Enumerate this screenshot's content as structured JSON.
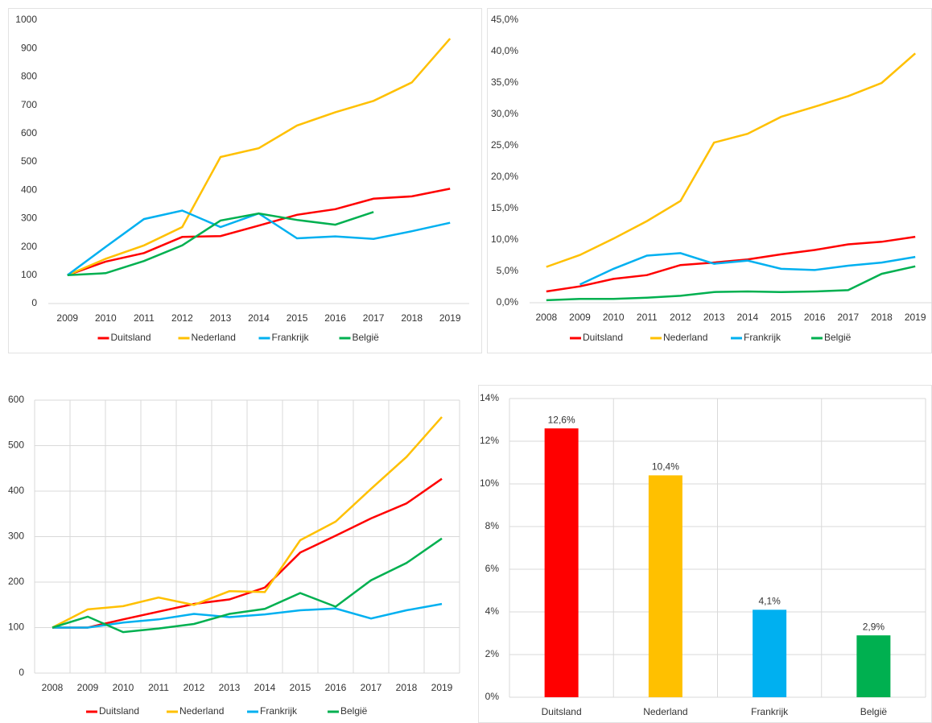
{
  "chart_data": [
    {
      "type": "line",
      "categories": [
        "2009",
        "2010",
        "2011",
        "2012",
        "2013",
        "2014",
        "2015",
        "2016",
        "2017",
        "2018",
        "2019"
      ],
      "ylim": [
        0,
        1000
      ],
      "yticks": [
        0,
        100,
        200,
        300,
        400,
        500,
        600,
        700,
        800,
        900,
        1000
      ],
      "grid": false,
      "legend": "bottom",
      "series": [
        {
          "name": "Duitsland",
          "color": "#ff0000",
          "values": [
            100,
            148,
            178,
            235,
            238,
            275,
            313,
            333,
            370,
            378,
            405
          ]
        },
        {
          "name": "Nederland",
          "color": "#ffc000",
          "values": [
            100,
            158,
            205,
            270,
            517,
            548,
            628,
            675,
            715,
            780,
            935
          ]
        },
        {
          "name": "Frankrijk",
          "color": "#00b0f0",
          "values": [
            100,
            200,
            298,
            328,
            270,
            318,
            230,
            237,
            228,
            255,
            285
          ]
        },
        {
          "name": "België",
          "color": "#00b050",
          "values": [
            100,
            107,
            150,
            205,
            293,
            318,
            295,
            278,
            323,
            null,
            null
          ]
        }
      ]
    },
    {
      "type": "line",
      "categories": [
        "2008",
        "2009",
        "2010",
        "2011",
        "2012",
        "2013",
        "2014",
        "2015",
        "2016",
        "2017",
        "2018",
        "2019"
      ],
      "ylim": [
        0,
        45
      ],
      "yticks": [
        {
          "value": 0,
          "label": "0,0%"
        },
        {
          "value": 5,
          "label": "5,0%"
        },
        {
          "value": 10,
          "label": "10,0%"
        },
        {
          "value": 15,
          "label": "15,0%"
        },
        {
          "value": 20,
          "label": "20,0%"
        },
        {
          "value": 25,
          "label": "25,0%"
        },
        {
          "value": 30,
          "label": "30,0%"
        },
        {
          "value": 35,
          "label": "35,0%"
        },
        {
          "value": 40,
          "label": "40,0%"
        },
        {
          "value": 45,
          "label": "45,0%"
        }
      ],
      "grid": false,
      "legend": "bottom",
      "series": [
        {
          "name": "Duitsland",
          "color": "#ff0000",
          "values": [
            1.8,
            2.6,
            3.8,
            4.4,
            6.0,
            6.4,
            6.9,
            7.7,
            8.4,
            9.3,
            9.7,
            10.5
          ]
        },
        {
          "name": "Nederland",
          "color": "#ffc000",
          "values": [
            5.7,
            7.6,
            10.2,
            13.0,
            16.2,
            25.5,
            26.9,
            29.6,
            31.2,
            32.9,
            35.0,
            39.7
          ]
        },
        {
          "name": "Frankrijk",
          "color": "#00b0f0",
          "values": [
            null,
            2.9,
            5.4,
            7.5,
            7.9,
            6.2,
            6.7,
            5.4,
            5.2,
            5.9,
            6.4,
            7.3
          ]
        },
        {
          "name": "België",
          "color": "#00b050",
          "values": [
            0.4,
            0.6,
            0.6,
            0.8,
            1.1,
            1.7,
            1.8,
            1.7,
            1.8,
            2.0,
            4.6,
            5.8
          ]
        }
      ]
    },
    {
      "type": "line",
      "categories": [
        "2008",
        "2009",
        "2010",
        "2011",
        "2012",
        "2013",
        "2014",
        "2015",
        "2016",
        "2017",
        "2018",
        "2019"
      ],
      "ylim": [
        0,
        600
      ],
      "yticks": [
        0,
        100,
        200,
        300,
        400,
        500,
        600
      ],
      "grid": true,
      "legend": "bottom",
      "series": [
        {
          "name": "Duitsland",
          "color": "#ff0000",
          "values": [
            100,
            100,
            118,
            135,
            152,
            162,
            188,
            265,
            302,
            340,
            373,
            427
          ]
        },
        {
          "name": "Nederland",
          "color": "#ffc000",
          "values": [
            100,
            140,
            147,
            166,
            150,
            180,
            178,
            292,
            333,
            405,
            475,
            563
          ]
        },
        {
          "name": "Frankrijk",
          "color": "#00b0f0",
          "values": [
            100,
            100,
            111,
            118,
            130,
            123,
            129,
            138,
            142,
            120,
            138,
            152
          ]
        },
        {
          "name": "België",
          "color": "#00b050",
          "values": [
            100,
            124,
            90,
            98,
            108,
            130,
            141,
            176,
            146,
            204,
            242,
            296
          ]
        }
      ]
    },
    {
      "type": "bar",
      "categories": [
        "Duitsland",
        "Nederland",
        "Frankrijk",
        "België"
      ],
      "values": [
        12.6,
        10.4,
        4.1,
        2.9
      ],
      "value_labels": [
        "12,6%",
        "10,4%",
        "4,1%",
        "2,9%"
      ],
      "colors": [
        "#ff0000",
        "#ffc000",
        "#00b0f0",
        "#00b050"
      ],
      "ylim": [
        0,
        14
      ],
      "yticks": [
        {
          "value": 0,
          "label": "0%"
        },
        {
          "value": 2,
          "label": "2%"
        },
        {
          "value": 4,
          "label": "4%"
        },
        {
          "value": 6,
          "label": "6%"
        },
        {
          "value": 8,
          "label": "8%"
        },
        {
          "value": 10,
          "label": "10%"
        },
        {
          "value": 12,
          "label": "12%"
        },
        {
          "value": 14,
          "label": "14%"
        }
      ],
      "grid": true
    }
  ]
}
